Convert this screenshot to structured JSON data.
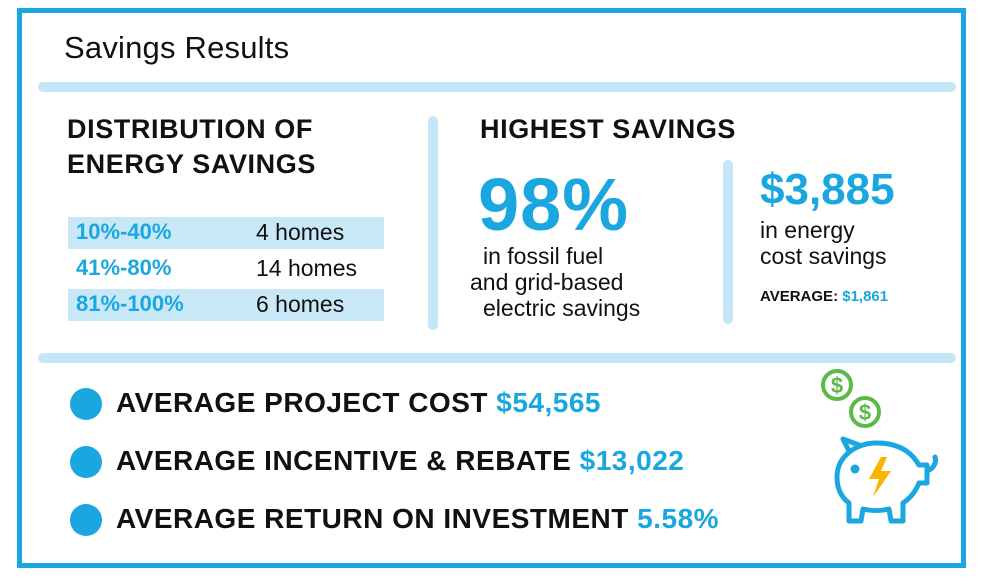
{
  "title": "Savings Results",
  "distribution": {
    "heading_line1": "DISTRIBUTION OF",
    "heading_line2": "ENERGY SAVINGS",
    "rows": [
      {
        "range": "10%-40%",
        "count": "4 homes"
      },
      {
        "range": "41%-80%",
        "count": "14 homes"
      },
      {
        "range": "81%-100%",
        "count": "6 homes"
      }
    ]
  },
  "highest": {
    "heading": "HIGHEST SAVINGS",
    "percent": "98%",
    "percent_desc": [
      "in fossil fuel",
      "and grid-based",
      "electric savings"
    ],
    "amount": "$3,885",
    "amount_desc": [
      "in energy",
      "cost savings"
    ],
    "average_label": "AVERAGE:",
    "average_value": "$1,861"
  },
  "stats": [
    {
      "label": "AVERAGE PROJECT COST",
      "value": "$54,565"
    },
    {
      "label": "AVERAGE INCENTIVE & REBATE",
      "value": "$13,022"
    },
    {
      "label": "AVERAGE RETURN ON INVESTMENT",
      "value": "5.58%"
    }
  ],
  "icons": {
    "coins": "dollar-coin-icon",
    "bank": "piggy-bank-icon",
    "bolt": "lightning-bolt-icon"
  },
  "colors": {
    "accent": "#1aa7e0",
    "light_accent": "#c5e6f6",
    "coin_green": "#5cb947",
    "bolt_yellow": "#f7b500",
    "text": "#111111"
  }
}
